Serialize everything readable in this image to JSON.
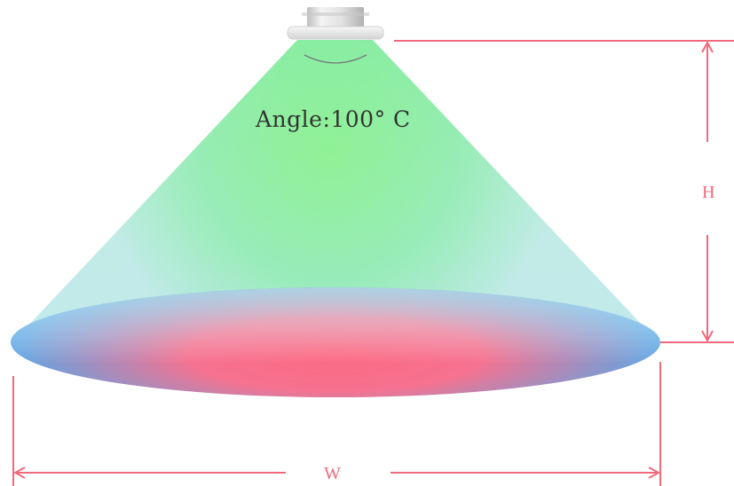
{
  "labels": {
    "angle": "Angle:100° C",
    "height": "H",
    "width": "W"
  },
  "colors": {
    "dimension_line": "#f06a7c",
    "beam_top": "#86f08c",
    "beam_bottom": "#b9e8e8",
    "ellipse_center": "#fb6c86",
    "ellipse_edge": "#62a8e6",
    "fixture_body": "#e8e8e8"
  }
}
